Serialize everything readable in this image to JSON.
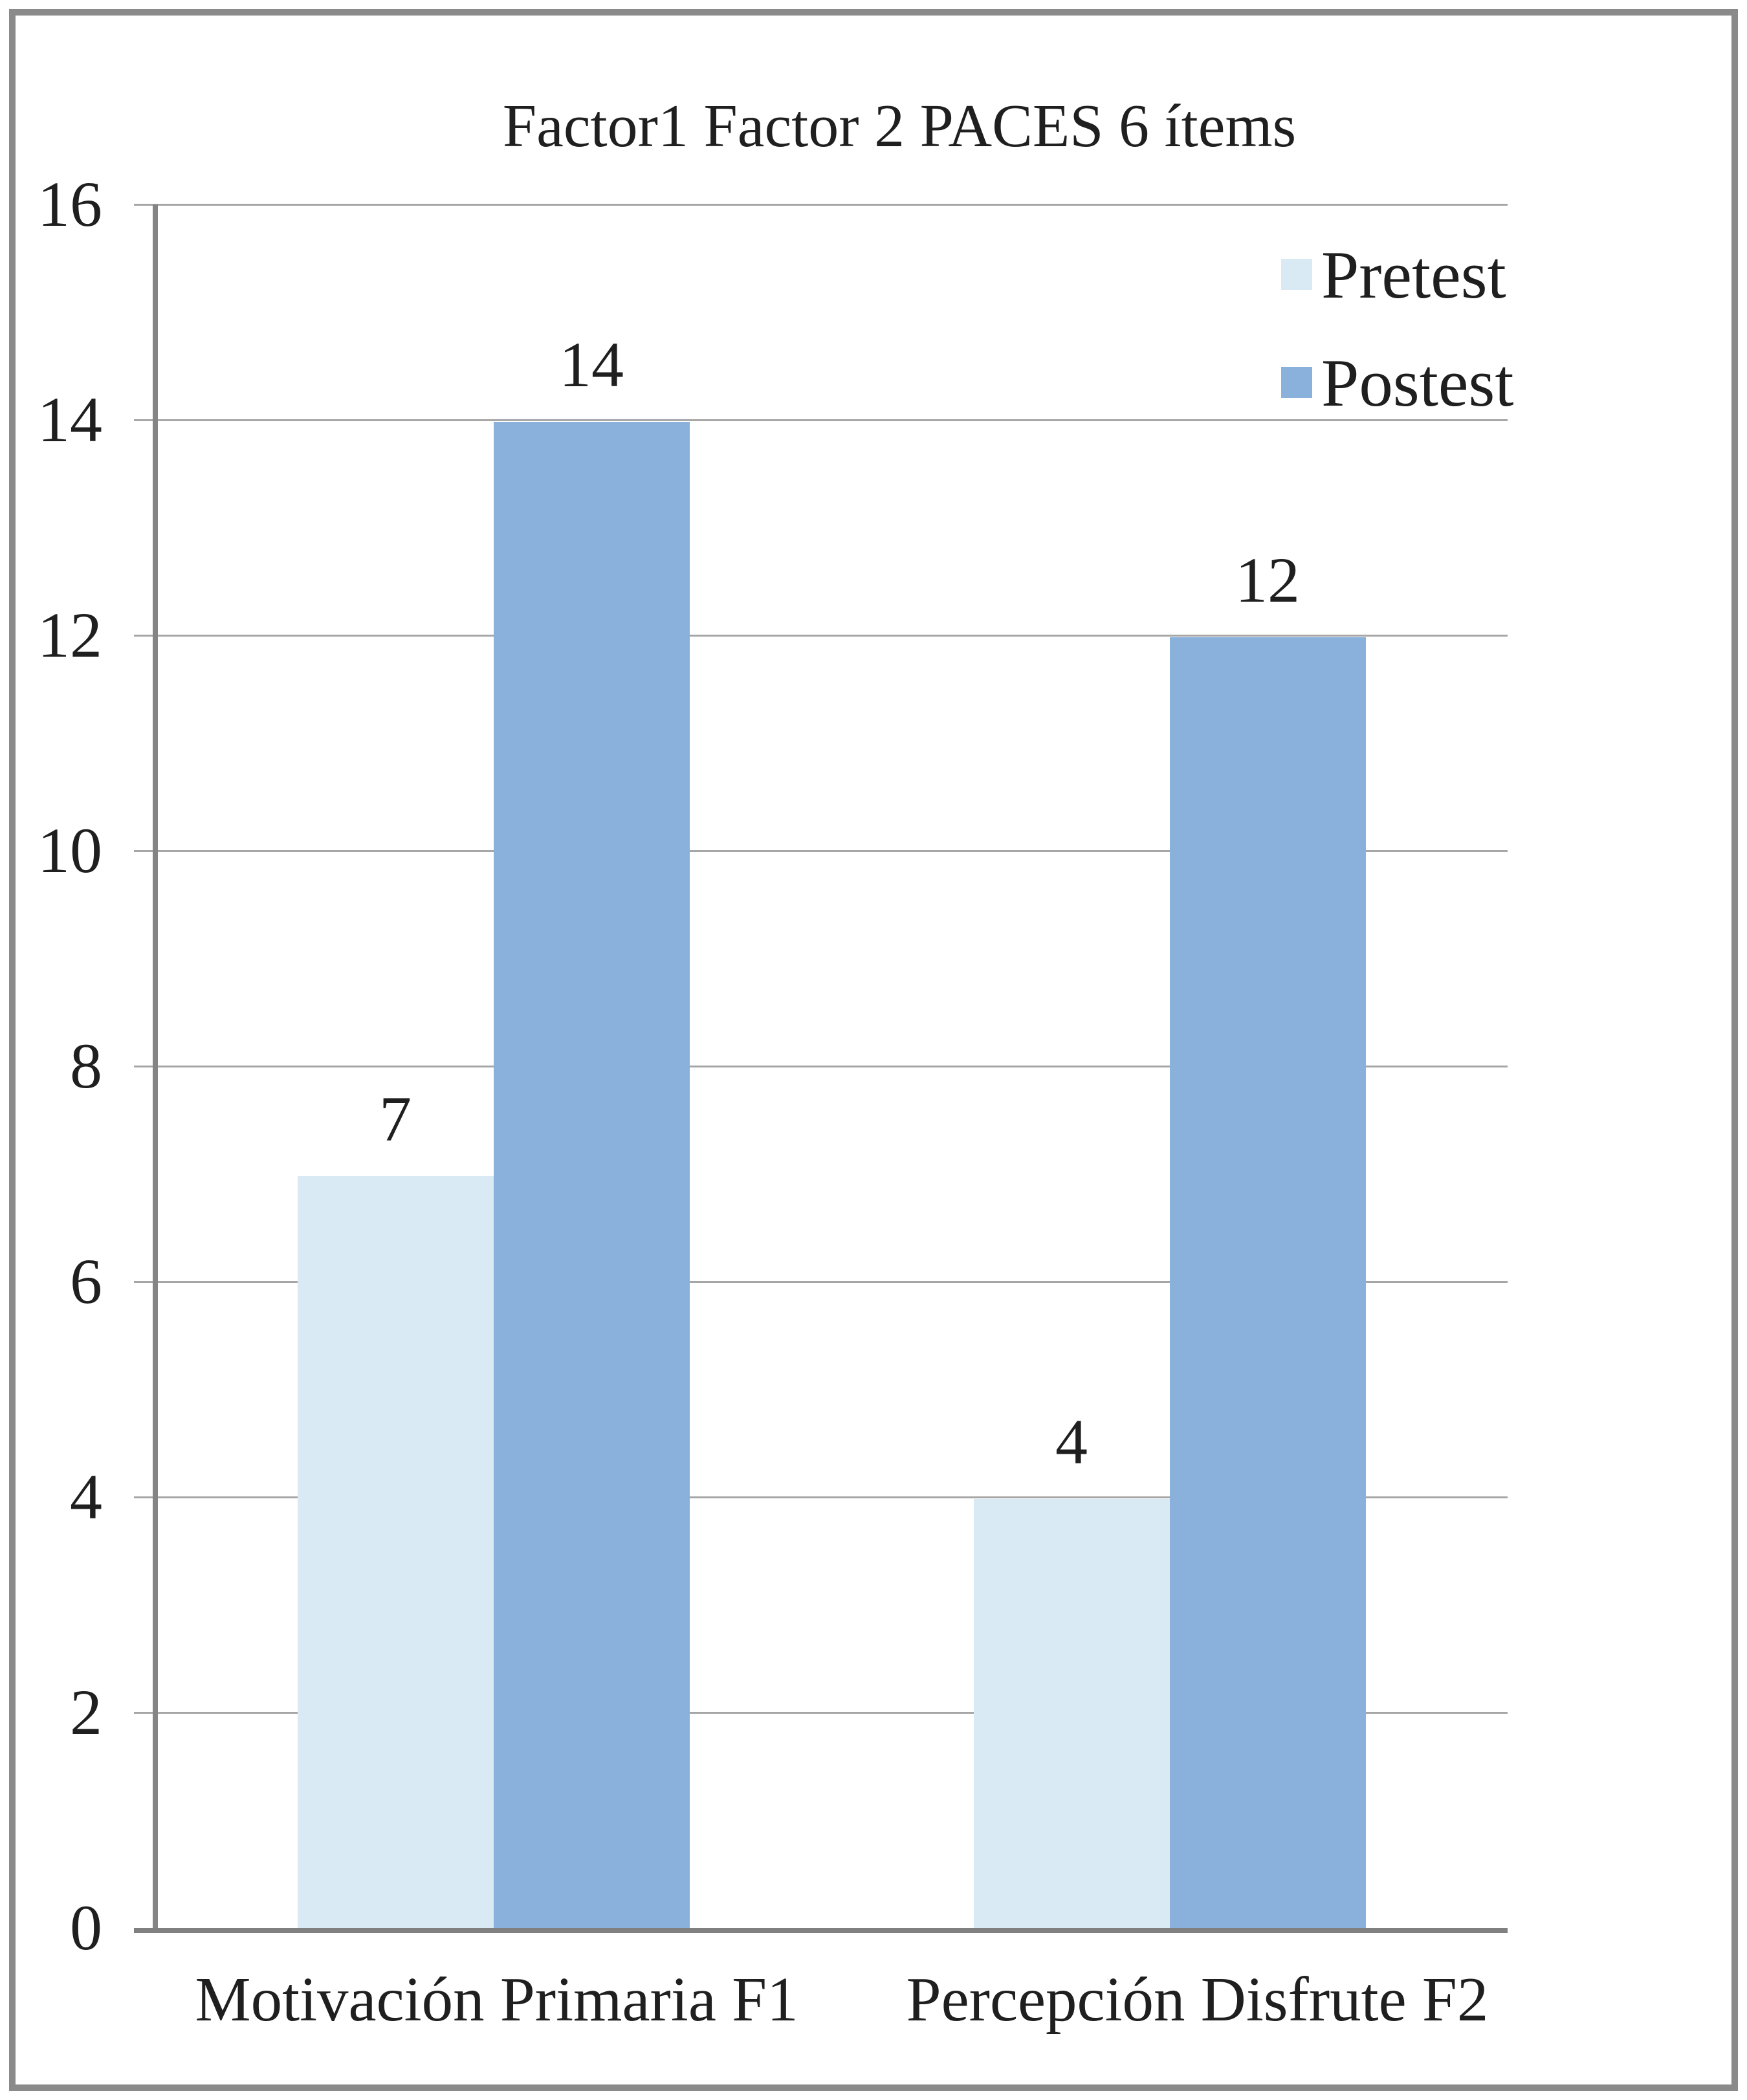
{
  "chart_data": {
    "type": "bar",
    "title": "Factor1 Factor 2 PACES 6 ítems",
    "categories": [
      "Motivación Primaria F1",
      "Percepción Disfrute F2"
    ],
    "series": [
      {
        "name": "Pretest",
        "values": [
          7,
          4
        ],
        "color": "#d9eaf4"
      },
      {
        "name": "Postest",
        "values": [
          14,
          12
        ],
        "color": "#8ab0dc"
      }
    ],
    "data_labels": [
      {
        "series": "Pretest",
        "category": "Motivación Primaria F1",
        "label": "7"
      },
      {
        "series": "Postest",
        "category": "Motivación Primaria F1",
        "label": "14"
      },
      {
        "series": "Pretest",
        "category": "Percepción Disfrute F2",
        "label": "4"
      },
      {
        "series": "Postest",
        "category": "Percepción Disfrute F2",
        "label": "12"
      }
    ],
    "ylim": [
      0,
      16
    ],
    "ytick_step": 2,
    "yticks": [
      0,
      2,
      4,
      6,
      8,
      10,
      12,
      14,
      16
    ],
    "grid": "horizontal",
    "legend": {
      "position": "top-right",
      "entries": [
        "Pretest",
        "Postest"
      ]
    }
  },
  "colors": {
    "gridline": "#a6a6a6",
    "y_axis": "#848484",
    "x_axis": "#808080",
    "frame_border": "#8a8a8a",
    "text": "#1f1f1f",
    "background": "#ffffff"
  }
}
